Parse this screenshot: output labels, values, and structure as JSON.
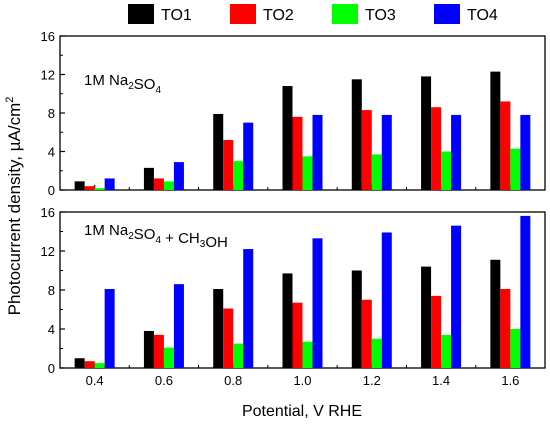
{
  "chart_data": {
    "type": "bar",
    "categories": [
      "0.4",
      "0.6",
      "0.8",
      "1.0",
      "1.2",
      "1.4",
      "1.6"
    ],
    "xlabel": "Potential, V RHE",
    "ylabel": "Photocurrent density, µA/cm",
    "ylabel_superscript": "2",
    "legend": {
      "placement": "top",
      "entries": [
        {
          "name": "TO1",
          "color": "#000000"
        },
        {
          "name": "TO2",
          "color": "#ff0000"
        },
        {
          "name": "TO3",
          "color": "#00ff00"
        },
        {
          "name": "TO4",
          "color": "#0000ff"
        }
      ]
    },
    "panels": [
      {
        "name": "top",
        "annotation": {
          "parts": [
            {
              "t": "1M Na"
            },
            {
              "t": "2",
              "sub": true
            },
            {
              "t": "SO"
            },
            {
              "t": "4",
              "sub": true
            }
          ]
        },
        "ylim": [
          0,
          16
        ],
        "yticks": [
          0,
          4,
          8,
          12,
          16
        ],
        "series": [
          {
            "name": "TO1",
            "color": "#000000",
            "values": [
              0.9,
              2.3,
              7.9,
              10.8,
              11.5,
              11.8,
              12.3
            ]
          },
          {
            "name": "TO2",
            "color": "#ff0000",
            "values": [
              0.4,
              1.2,
              5.2,
              7.6,
              8.3,
              8.6,
              9.2
            ]
          },
          {
            "name": "TO3",
            "color": "#00ff00",
            "values": [
              0.2,
              0.9,
              3.0,
              3.5,
              3.7,
              4.0,
              4.3
            ]
          },
          {
            "name": "TO4",
            "color": "#0000ff",
            "values": [
              1.2,
              2.9,
              7.0,
              7.8,
              7.8,
              7.8,
              7.8
            ]
          }
        ]
      },
      {
        "name": "bottom",
        "annotation": {
          "parts": [
            {
              "t": "1M Na"
            },
            {
              "t": "2",
              "sub": true
            },
            {
              "t": "SO"
            },
            {
              "t": "4",
              "sub": true
            },
            {
              "t": " + CH"
            },
            {
              "t": "3",
              "sub": true
            },
            {
              "t": "OH"
            }
          ]
        },
        "ylim": [
          0,
          16
        ],
        "yticks": [
          0,
          4,
          8,
          12,
          16
        ],
        "series": [
          {
            "name": "TO1",
            "color": "#000000",
            "values": [
              1.0,
              3.8,
              8.1,
              9.7,
              10.0,
              10.4,
              11.1
            ]
          },
          {
            "name": "TO2",
            "color": "#ff0000",
            "values": [
              0.7,
              3.4,
              6.1,
              6.7,
              7.0,
              7.4,
              8.1
            ]
          },
          {
            "name": "TO3",
            "color": "#00ff00",
            "values": [
              0.5,
              2.1,
              2.5,
              2.7,
              3.0,
              3.4,
              4.0
            ]
          },
          {
            "name": "TO4",
            "color": "#0000ff",
            "values": [
              8.1,
              8.6,
              12.2,
              13.3,
              13.9,
              14.6,
              15.6
            ]
          }
        ]
      }
    ]
  }
}
